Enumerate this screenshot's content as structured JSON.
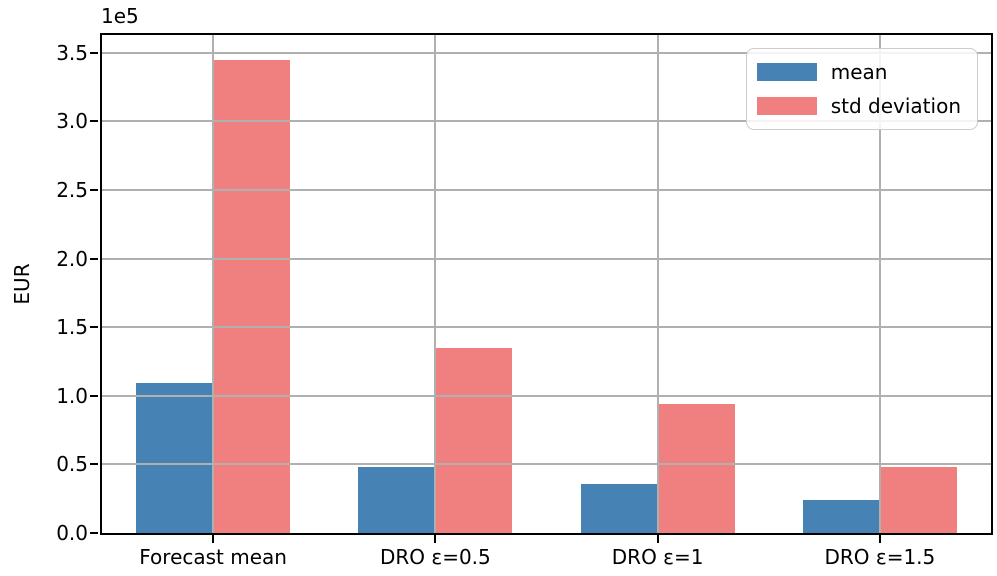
{
  "chart_data": {
    "type": "bar",
    "title": "",
    "xlabel": "",
    "ylabel": "EUR",
    "offset_text": "1e5",
    "categories": [
      "Forecast mean",
      "DRO ε=0.5",
      "DRO ε=1",
      "DRO ε=1.5"
    ],
    "series": [
      {
        "name": "mean",
        "color": "#4682b4",
        "values": [
          109000,
          48000,
          36000,
          24000
        ]
      },
      {
        "name": "std deviation",
        "color": "#f08080",
        "values": [
          345000,
          135000,
          94000,
          48000
        ]
      }
    ],
    "ylim": [
      0,
      363000
    ],
    "yticks": [
      0,
      0.5,
      1,
      1.5,
      2,
      2.5,
      3,
      3.5
    ],
    "ytick_scale": 100000,
    "grid": true,
    "grid_color": "#b0b0b0",
    "axis_color": "#000000",
    "legend_position": "upper right"
  }
}
